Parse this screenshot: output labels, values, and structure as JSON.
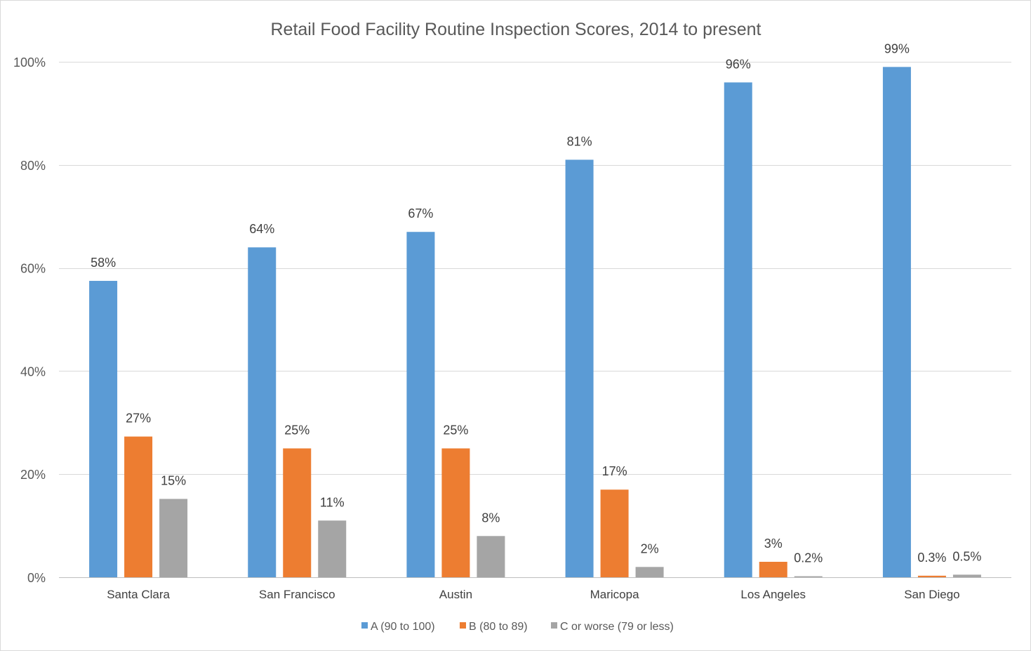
{
  "chart_data": {
    "type": "bar",
    "title": "Retail Food Facility Routine Inspection Scores, 2014 to present",
    "xlabel": "",
    "ylabel": "",
    "ylim": [
      0,
      100
    ],
    "yticks": [
      0,
      20,
      40,
      60,
      80,
      100
    ],
    "ytick_labels": [
      "0%",
      "20%",
      "40%",
      "60%",
      "80%",
      "100%"
    ],
    "grid": true,
    "legend_position": "bottom",
    "categories": [
      "Santa Clara",
      "San Francisco",
      "Austin",
      "Maricopa",
      "Los Angeles",
      "San Diego"
    ],
    "series": [
      {
        "name": "A (90 to 100)",
        "color": "#5b9bd5",
        "values": [
          57.5,
          64,
          67,
          81,
          96,
          99
        ],
        "labels": [
          "58%",
          "64%",
          "67%",
          "81%",
          "96%",
          "99%"
        ]
      },
      {
        "name": "B (80 to 89)",
        "color": "#ed7d31",
        "values": [
          27.3,
          25,
          25,
          17,
          3,
          0.3
        ],
        "labels": [
          "27%",
          "25%",
          "25%",
          "17%",
          "3%",
          "0.3%"
        ]
      },
      {
        "name": "C or worse (79 or less)",
        "color": "#a5a5a5",
        "values": [
          15.2,
          11,
          8,
          2,
          0.2,
          0.5
        ],
        "labels": [
          "15%",
          "11%",
          "8%",
          "2%",
          "0.2%",
          "0.5%"
        ]
      }
    ]
  }
}
